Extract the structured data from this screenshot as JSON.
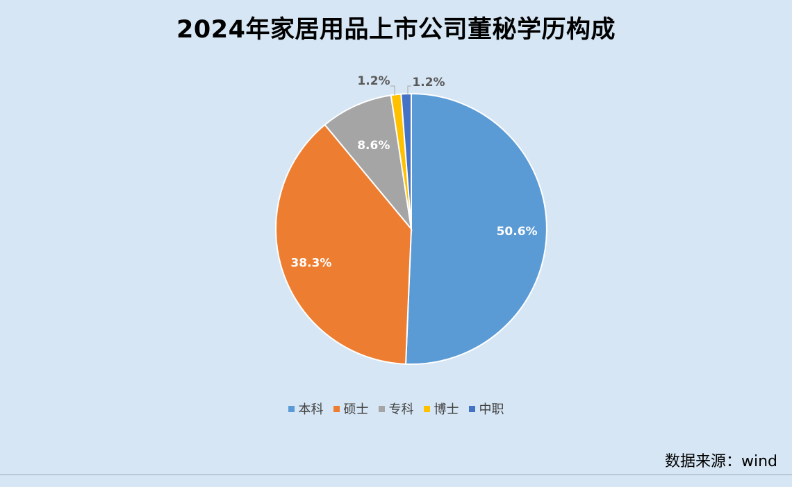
{
  "chart_data": {
    "type": "pie",
    "title": "2024年家居用品上市公司董秘学历构成",
    "categories": [
      "本科",
      "硕士",
      "专科",
      "博士",
      "中职"
    ],
    "values": [
      50.6,
      38.3,
      8.6,
      1.2,
      1.2
    ],
    "labels": [
      "50.6%",
      "38.3%",
      "8.6%",
      "1.2%",
      "1.2%"
    ],
    "colors": [
      "#5b9bd5",
      "#ed7d31",
      "#a5a5a5",
      "#ffc000",
      "#4472c4"
    ],
    "start_angle_deg": 0,
    "direction": "clockwise",
    "legend_position": "bottom",
    "label_color_inside": "#ffffff",
    "label_color_outside": "#595959",
    "slice_border_color": "#ffffff"
  },
  "source": "数据来源：wind"
}
